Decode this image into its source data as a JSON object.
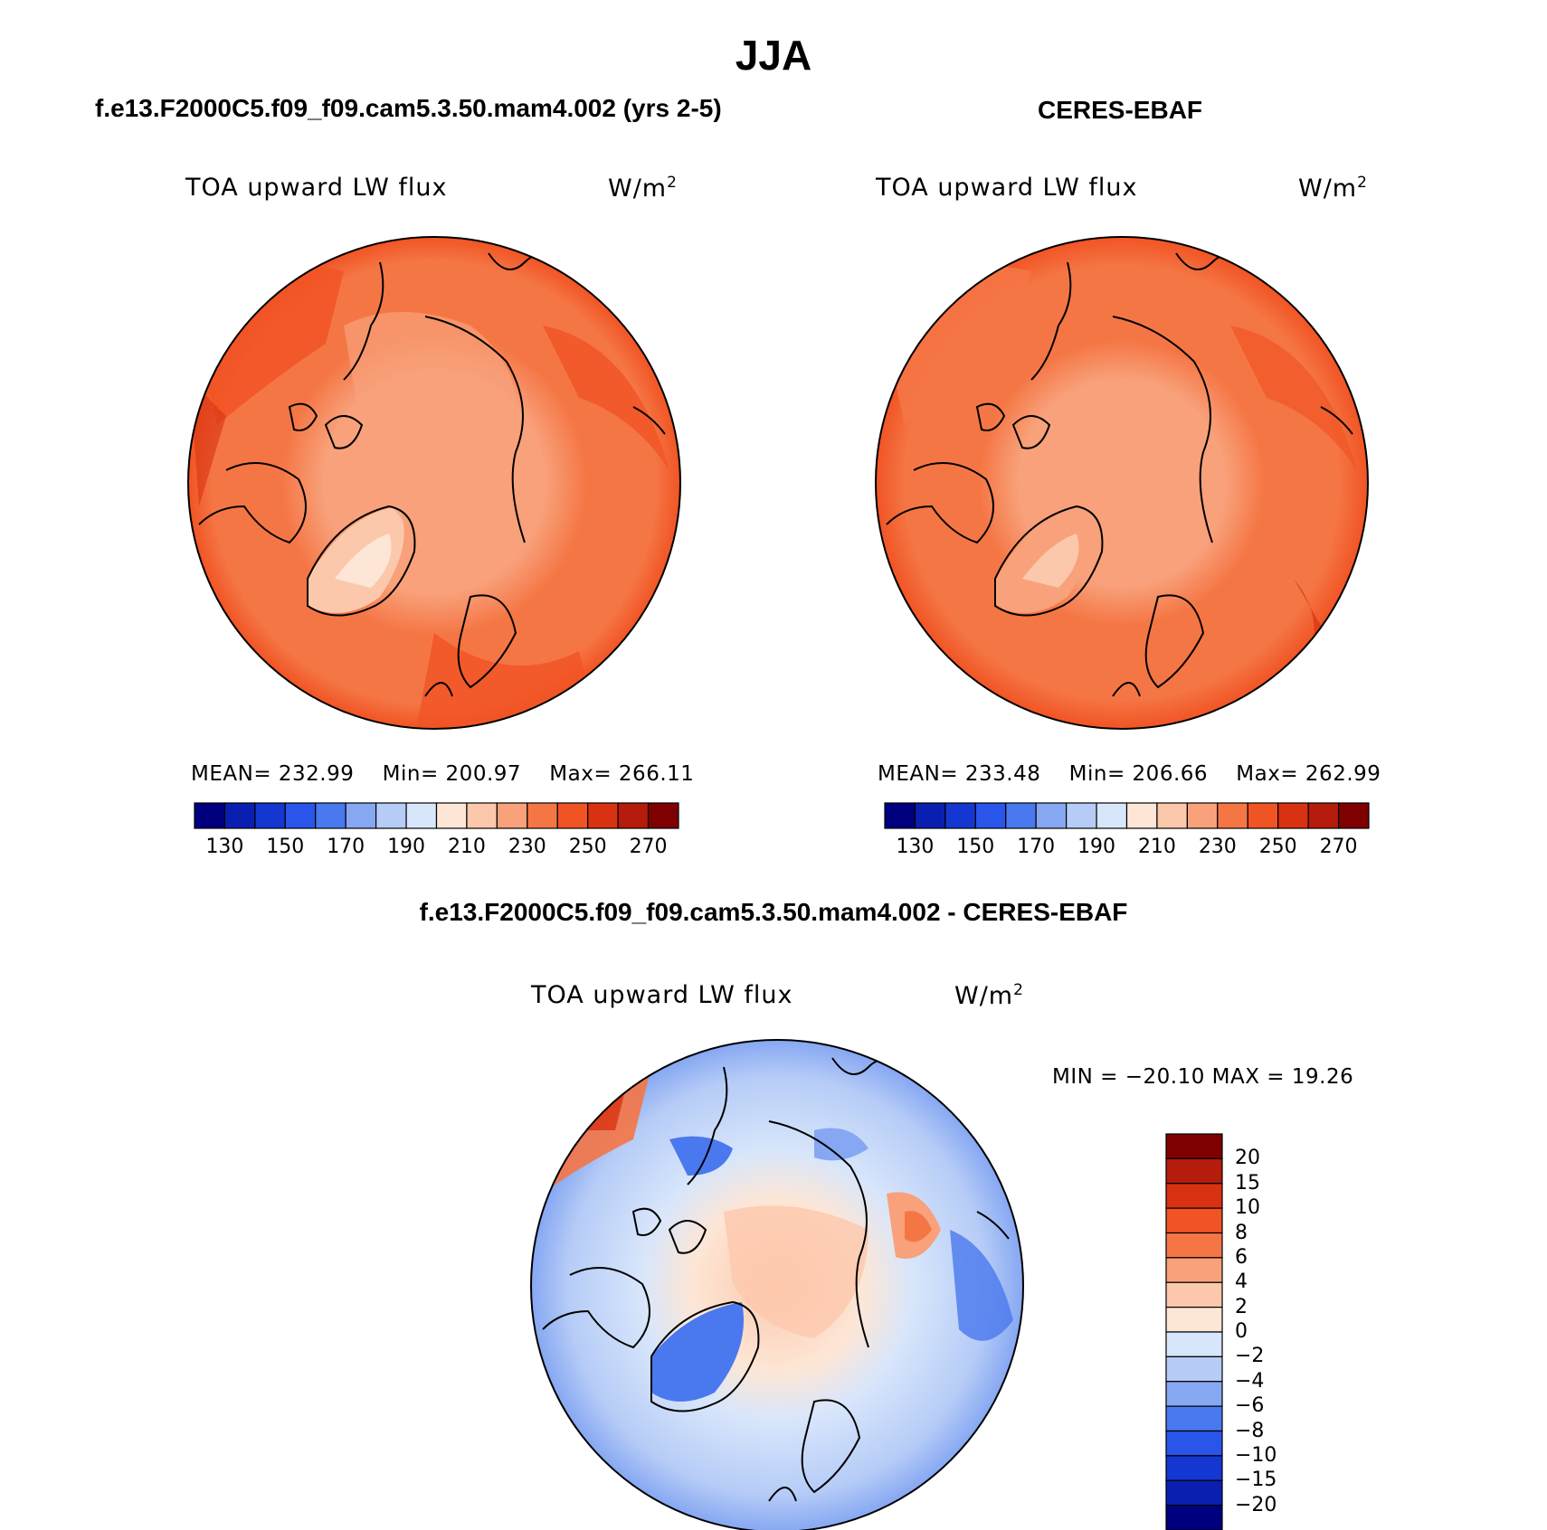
{
  "main_title": "JJA",
  "panels": {
    "left": {
      "title": "f.e13.F2000C5.f09_f09.cam5.3.50.mam4.002 (yrs 2-5)",
      "variable": "TOA upward LW flux",
      "units_base": "W/m",
      "units_exp": "2",
      "stats": {
        "mean_label": "MEAN=",
        "mean": "232.99",
        "min_label": "Min=",
        "min": "200.97",
        "max_label": "Max=",
        "max": "266.11"
      }
    },
    "right": {
      "title": "CERES-EBAF",
      "variable": "TOA upward LW flux",
      "units_base": "W/m",
      "units_exp": "2",
      "stats": {
        "mean_label": "MEAN=",
        "mean": "233.48",
        "min_label": "Min=",
        "min": "206.66",
        "max_label": "Max=",
        "max": "262.99"
      }
    },
    "diff": {
      "title": "f.e13.F2000C5.f09_f09.cam5.3.50.mam4.002 - CERES-EBAF",
      "variable": "TOA upward LW flux",
      "units_base": "W/m",
      "units_exp": "2",
      "stats_text": "MIN = −20.10 MAX =  19.26"
    }
  },
  "colorbar_abs": {
    "labels": [
      "130",
      "150",
      "170",
      "190",
      "210",
      "230",
      "250",
      "270"
    ],
    "colors": [
      "#00007f",
      "#0a1fb0",
      "#1537d1",
      "#2a55ea",
      "#4a78ee",
      "#86a7f2",
      "#b6ccf7",
      "#d8e6fb",
      "#fde6d6",
      "#fcc8ac",
      "#f8a17a",
      "#f57645",
      "#f15424",
      "#d93212",
      "#b51c0b",
      "#7f0000"
    ]
  },
  "colorbar_diff": {
    "labels": [
      "20",
      "15",
      "10",
      "8",
      "6",
      "4",
      "2",
      "0",
      "−2",
      "−4",
      "−6",
      "−8",
      "−10",
      "−15",
      "−20"
    ],
    "colors": [
      "#7f0000",
      "#b51c0b",
      "#d93212",
      "#f15424",
      "#f57645",
      "#f8a17a",
      "#fcc8ac",
      "#fde6d6",
      "#d8e6fb",
      "#b6ccf7",
      "#86a7f2",
      "#4a78ee",
      "#2a55ea",
      "#1537d1",
      "#0a1fb0",
      "#00007f"
    ]
  },
  "colors": {
    "land_outline": "#000000",
    "greenland_model": "#fde6d6",
    "arctic_center": "#f8a17a",
    "ocean_main": "#f57645",
    "ocean_warm": "#f15424"
  }
}
